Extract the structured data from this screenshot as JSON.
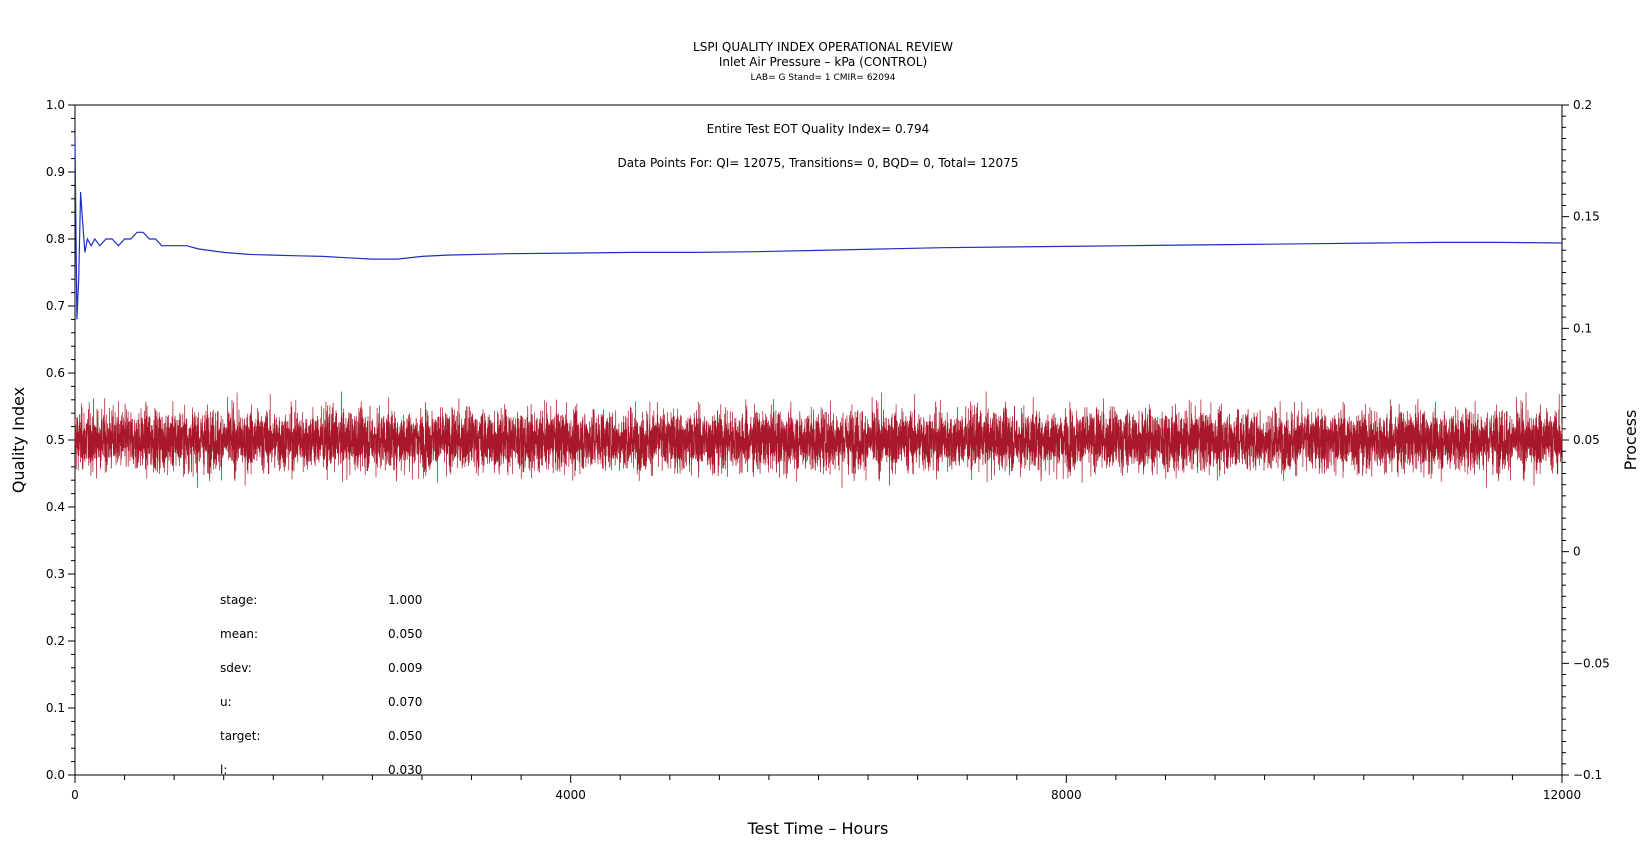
{
  "chart_data": {
    "type": "line",
    "title": "LSPI QUALITY INDEX OPERATIONAL REVIEW",
    "subtitle": "Inlet Air Pressure – kPa (CONTROL)",
    "subtitle2": "LAB= G Stand= 1 CMIR= 62094",
    "xlabel": "Test Time – Hours",
    "ylabel": "Quality Index",
    "y2label": "Process",
    "xlim": [
      0,
      12000
    ],
    "ylim": [
      0,
      1.0
    ],
    "y2lim": [
      -0.1,
      0.2
    ],
    "x_ticks": [
      "0",
      "4000",
      "8000",
      "12000"
    ],
    "y_ticks": [
      "0.0",
      "0.1",
      "0.2",
      "0.3",
      "0.4",
      "0.5",
      "0.6",
      "0.7",
      "0.8",
      "0.9",
      "1.0"
    ],
    "y2_ticks": [
      "−0.1",
      "−0.05",
      "0",
      "0.05",
      "0.1",
      "0.15",
      "0.2"
    ],
    "annotations": [
      "Entire Test EOT Quality Index=   0.794",
      "Data Points For: QI= 12075, Transitions=      0, BQD=      0, Total= 12075"
    ],
    "stats": [
      {
        "label": "stage:",
        "value": "1.000"
      },
      {
        "label": "mean:",
        "value": "0.050"
      },
      {
        "label": "sdev:",
        "value": "0.009"
      },
      {
        "label": "u:",
        "value": "0.070"
      },
      {
        "label": "target:",
        "value": "0.050"
      },
      {
        "label": "l:",
        "value": "0.030"
      }
    ],
    "series": [
      {
        "axis": "left",
        "color": "#1f2fbf",
        "x": [
          0,
          15,
          30,
          45,
          60,
          80,
          100,
          130,
          160,
          200,
          250,
          300,
          350,
          400,
          450,
          500,
          550,
          600,
          650,
          700,
          800,
          900,
          1000,
          1200,
          1400,
          1600,
          1800,
          2000,
          2200,
          2400,
          2600,
          2800,
          3000,
          3500,
          4000,
          4500,
          5000,
          5500,
          6000,
          6500,
          7000,
          7500,
          8000,
          8500,
          9000,
          9500,
          10000,
          10500,
          11000,
          11500,
          12000
        ],
        "y": [
          0.95,
          0.68,
          0.74,
          0.87,
          0.83,
          0.78,
          0.8,
          0.79,
          0.8,
          0.79,
          0.8,
          0.8,
          0.79,
          0.8,
          0.8,
          0.81,
          0.81,
          0.8,
          0.8,
          0.79,
          0.79,
          0.79,
          0.785,
          0.78,
          0.777,
          0.776,
          0.775,
          0.774,
          0.772,
          0.77,
          0.77,
          0.774,
          0.776,
          0.778,
          0.779,
          0.78,
          0.78,
          0.781,
          0.783,
          0.785,
          0.787,
          0.788,
          0.789,
          0.79,
          0.791,
          0.792,
          0.793,
          0.794,
          0.795,
          0.795,
          0.794
        ]
      },
      {
        "axis": "right",
        "color": "#a8182a",
        "mean": 0.05,
        "sdev": 0.009,
        "points": 12075
      }
    ]
  }
}
